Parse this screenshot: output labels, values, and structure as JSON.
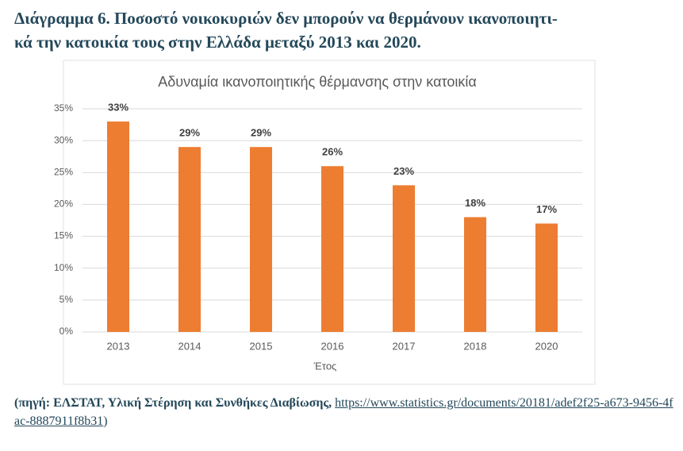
{
  "heading": {
    "lines": [
      "Διάγραμμα 6. Ποσοστό νοικοκυριών δεν μπορούν να θερμάνουν ικανοποιητι-",
      "κά την κατοικία τους στην Ελλάδα μεταξύ 2013 και 2020."
    ]
  },
  "chart_data": {
    "type": "bar",
    "title": "Αδυναμία ικανοποιητικής θέρμανσης στην κατοικία",
    "x_label": "Έτος",
    "categories": [
      "2013",
      "2014",
      "2015",
      "2016",
      "2017",
      "2018",
      "2020"
    ],
    "values": [
      33,
      29,
      29,
      26,
      23,
      18,
      17
    ],
    "value_labels": [
      "33%",
      "29%",
      "29%",
      "26%",
      "23%",
      "18%",
      "17%"
    ],
    "color": "#ed7d31",
    "ylim": [
      0,
      35
    ],
    "yticks": [
      {
        "value": 0,
        "label": "0%"
      },
      {
        "value": 5,
        "label": "5%"
      },
      {
        "value": 10,
        "label": "10%"
      },
      {
        "value": 15,
        "label": "15%"
      },
      {
        "value": 20,
        "label": "20%"
      },
      {
        "value": 25,
        "label": "25%"
      },
      {
        "value": 30,
        "label": "30%"
      },
      {
        "value": 35,
        "label": "35%"
      }
    ],
    "grid": true
  },
  "source": {
    "prefix": "(πηγή: ΕΛΣΤΑΤ, Υλική Στέρηση και Συνθήκες Διαβίωσης, ",
    "url": "https://www.statistics.gr/documents/20181/adef2f25-a673-9456-4fac-8887911f8b31",
    "suffix": ")"
  }
}
